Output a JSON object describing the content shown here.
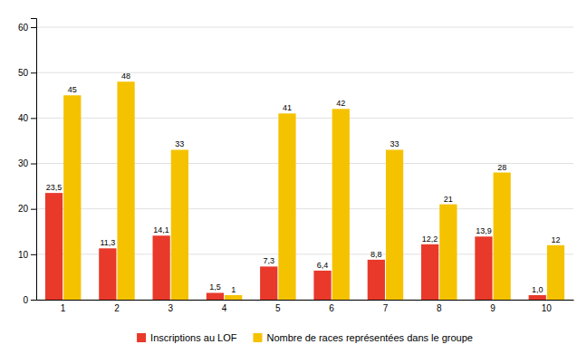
{
  "chart_data": {
    "type": "bar",
    "categories": [
      "1",
      "2",
      "3",
      "4",
      "5",
      "6",
      "7",
      "8",
      "9",
      "10"
    ],
    "series": [
      {
        "name": "Inscriptions au LOF",
        "color": "#E8392A",
        "values": [
          23.5,
          11.3,
          14.1,
          1.5,
          7.3,
          6.4,
          8.8,
          12.2,
          13.9,
          1.0
        ],
        "value_labels": [
          "23,5",
          "11,3",
          "14,1",
          "1,5",
          "7,3",
          "6,4",
          "8,8",
          "12,2",
          "13,9",
          "1,0"
        ]
      },
      {
        "name": "Nombre de races représentées dans le groupe",
        "color": "#F5C200",
        "values": [
          45,
          48,
          33,
          1,
          41,
          42,
          33,
          21,
          28,
          12
        ]
      }
    ],
    "ylim": [
      0,
      62
    ],
    "yticks": [
      0,
      10,
      20,
      30,
      40,
      50,
      60
    ],
    "grid": true,
    "legend": "bottom",
    "data_labels": true
  }
}
